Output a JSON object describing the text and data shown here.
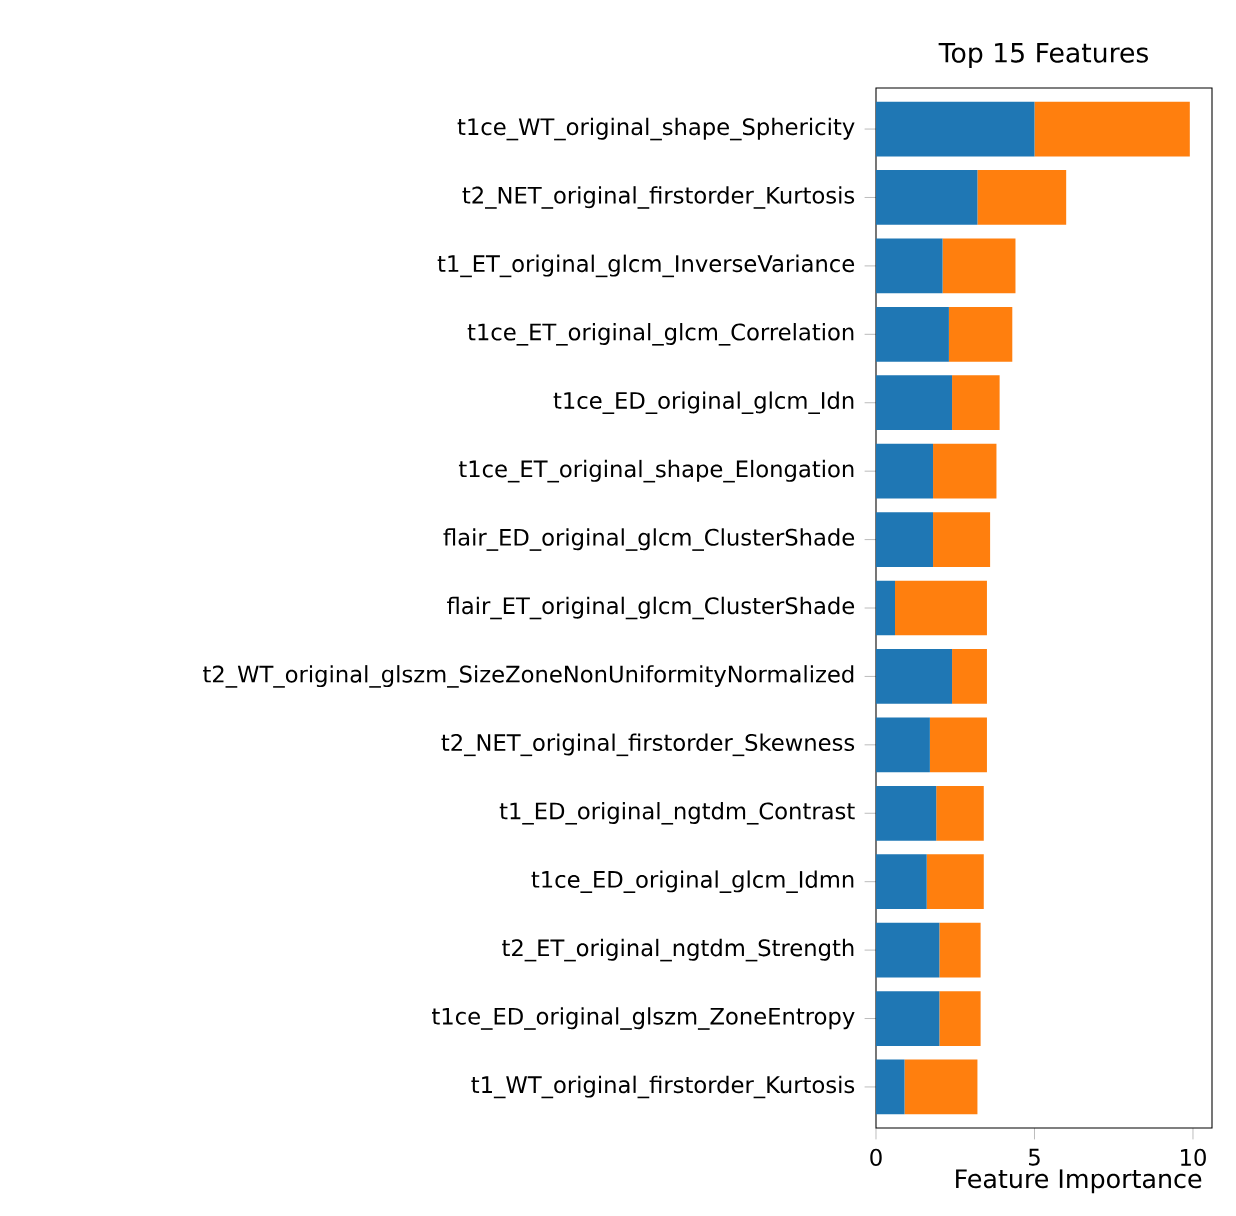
{
  "chart_data": {
    "type": "bar",
    "orientation": "horizontal",
    "stacked": true,
    "title": "Top 15 Features",
    "xlabel": "Feature Importance",
    "categories": [
      "t1ce_WT_original_shape_Sphericity",
      "t2_NET_original_firstorder_Kurtosis",
      "t1_ET_original_glcm_InverseVariance",
      "t1ce_ET_original_glcm_Correlation",
      "t1ce_ED_original_glcm_Idn",
      "t1ce_ET_original_shape_Elongation",
      "flair_ED_original_glcm_ClusterShade",
      "flair_ET_original_glcm_ClusterShade",
      "t2_WT_original_glszm_SizeZoneNonUniformityNormalized",
      "t2_NET_original_firstorder_Skewness",
      "t1_ED_original_ngtdm_Contrast",
      "t1ce_ED_original_glcm_Idmn",
      "t2_ET_original_ngtdm_Strength",
      "t1ce_ED_original_glszm_ZoneEntropy",
      "t1_WT_original_firstorder_Kurtosis"
    ],
    "series": [
      {
        "color": "#1f77b4",
        "values": [
          5.0,
          3.2,
          2.1,
          2.3,
          2.4,
          1.8,
          1.8,
          0.6,
          2.4,
          1.7,
          1.9,
          1.6,
          2.0,
          2.0,
          0.9
        ]
      },
      {
        "color": "#ff7f0e",
        "values": [
          4.9,
          2.8,
          2.3,
          2.0,
          1.5,
          2.0,
          1.8,
          2.9,
          1.1,
          1.8,
          1.5,
          1.8,
          1.3,
          1.3,
          2.3
        ]
      }
    ],
    "xlim": [
      0,
      10.6
    ],
    "xticks": [
      0,
      5,
      10
    ]
  }
}
